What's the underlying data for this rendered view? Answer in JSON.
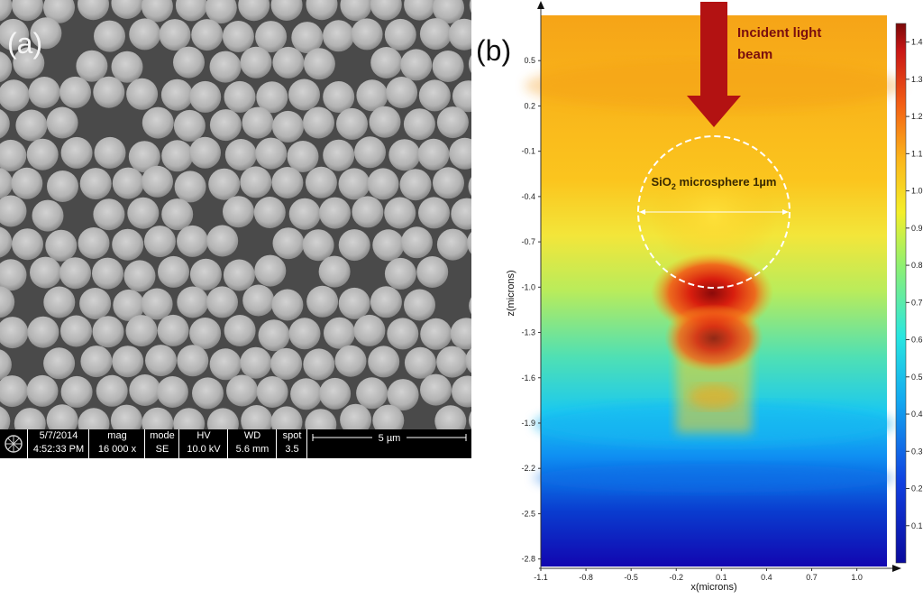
{
  "panel_a": {
    "label": "(a)",
    "info_bar": {
      "date": "5/7/2014",
      "time": "4:52:33 PM",
      "mag_header": "mag",
      "mag_value": "16 000 x",
      "mode_header": "mode",
      "mode_value": "SE",
      "hv_header": "HV",
      "hv_value": "10.0 kV",
      "wd_header": "WD",
      "wd_value": "5.6 mm",
      "spot_header": "spot",
      "spot_value": "3.5",
      "scale_label": "5 µm"
    }
  },
  "panel_b": {
    "label": "(b)",
    "incident_label_line1": "Incident light",
    "incident_label_line2": "beam",
    "sphere_label_prefix": "SiO",
    "sphere_label_sub": "2",
    "sphere_label_suffix": " microsphere 1µm",
    "accent_arrow_color": "#b31212"
  },
  "chart_data": {
    "type": "heatmap",
    "title": "",
    "xlabel": "x(microns)",
    "ylabel": "z(microns)",
    "x_ticks": [
      "-1.1",
      "-0.8",
      "-0.5",
      "-0.2",
      "0.1",
      "0.4",
      "0.7",
      "1.0"
    ],
    "y_ticks": [
      "0.5",
      "0.2",
      "-0.1",
      "-0.4",
      "-0.7",
      "-1.0",
      "-1.3",
      "-1.6",
      "-1.9",
      "-2.2",
      "-2.5",
      "-2.8"
    ],
    "xlim": [
      -1.1,
      1.2
    ],
    "ylim": [
      -2.85,
      0.8
    ],
    "colorbar": {
      "ticks": [
        "1.4",
        "1.3",
        "1.2",
        "1.1",
        "1.0",
        "0.9",
        "0.8",
        "0.7",
        "0.6",
        "0.5",
        "0.4",
        "0.3",
        "0.2",
        "0.1"
      ],
      "range": [
        0.0,
        1.45
      ]
    },
    "sphere": {
      "center_x": 0.0,
      "center_z": -0.5,
      "diameter": 1.0
    },
    "hotspot": {
      "x": 0.0,
      "z": -1.0,
      "peak_intensity": 1.45
    }
  }
}
